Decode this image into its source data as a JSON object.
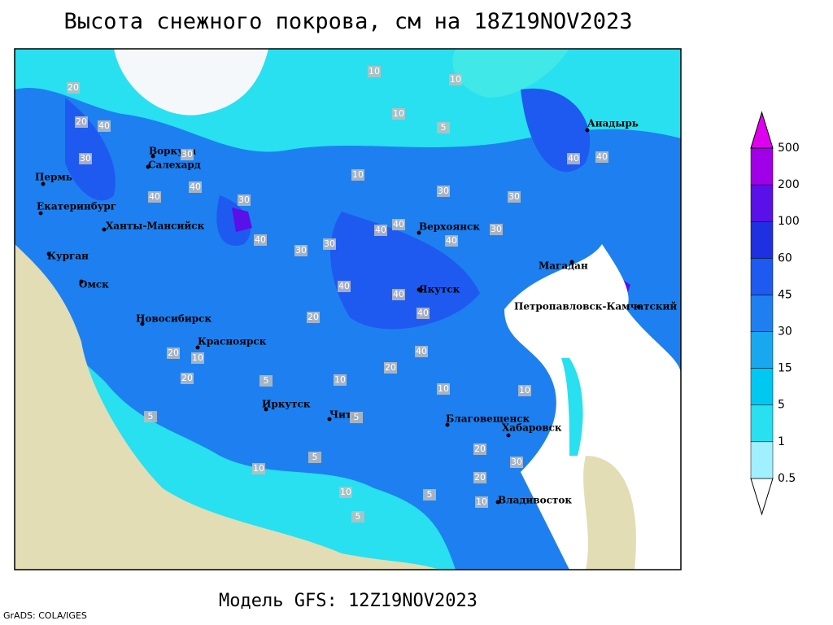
{
  "header": {
    "title": "Высота снежного покрова, см на 18Z19NOV2023"
  },
  "footer": {
    "model": "Модель GFS: 12Z19NOV2023",
    "credit": "GrADS: COLA/IGES"
  },
  "colorbar": {
    "levels": [
      0.5,
      1,
      5,
      15,
      30,
      45,
      60,
      100,
      200,
      500
    ],
    "colors": [
      "#ffffff",
      "#a0f0ff",
      "#28e0f0",
      "#00c8f0",
      "#18a8f0",
      "#1e80f0",
      "#1e5af0",
      "#1e30e0",
      "#5a10e8",
      "#a000e8",
      "#e000f0"
    ]
  },
  "cities": [
    "Воркута",
    "Салехард",
    "Пермь",
    "Екатеринбург",
    "Ханты-Мансийск",
    "Курган",
    "Омск",
    "Новосибирск",
    "Красноярск",
    "Иркутск",
    "Чита",
    "Верхоянск",
    "Якутск",
    "Магадан",
    "Анадырь",
    "Петропавловск-Камчатский",
    "Благовещенск",
    "Хабаровск",
    "Владивосток"
  ],
  "contour_labels": [
    20,
    10,
    10,
    10,
    5,
    20,
    30,
    40,
    30,
    40,
    30,
    40,
    40,
    30,
    30,
    40,
    40,
    40,
    40,
    30,
    40,
    30,
    30,
    40,
    40,
    40,
    40,
    20,
    10,
    20,
    20,
    10,
    5,
    5,
    10,
    10,
    20,
    10,
    5,
    20,
    30,
    10,
    10,
    5,
    5,
    10,
    20,
    5
  ]
}
